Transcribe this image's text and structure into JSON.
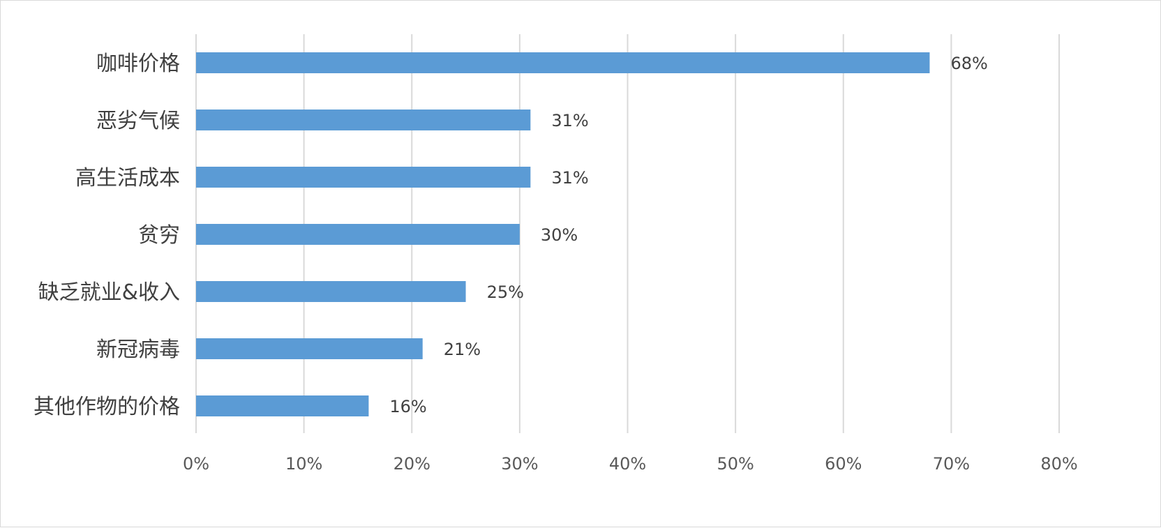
{
  "chart_data": {
    "type": "bar",
    "orientation": "horizontal",
    "categories": [
      "咖啡价格",
      "恶劣气候",
      "高生活成本",
      "贫穷",
      "缺乏就业&收入",
      "新冠病毒",
      "其他作物的价格"
    ],
    "values": [
      68,
      31,
      31,
      30,
      25,
      21,
      16
    ],
    "value_labels": [
      "68%",
      "31%",
      "31%",
      "30%",
      "25%",
      "21%",
      "16%"
    ],
    "xlim": [
      0,
      80
    ],
    "x_ticks": [
      0,
      10,
      20,
      30,
      40,
      50,
      60,
      70,
      80
    ],
    "x_tick_labels": [
      "0%",
      "10%",
      "20%",
      "30%",
      "40%",
      "50%",
      "60%",
      "70%",
      "80%"
    ],
    "grid": "vertical",
    "legend": "none",
    "bar_color": "#5b9bd5"
  }
}
